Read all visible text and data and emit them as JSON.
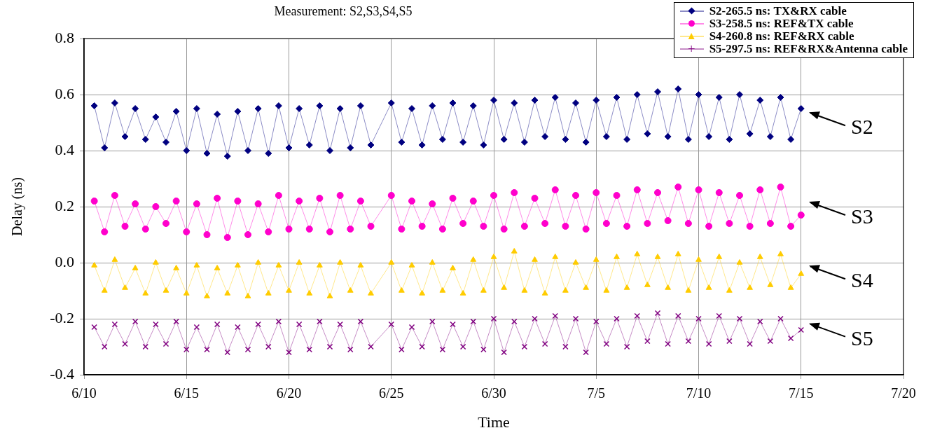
{
  "chart_data": {
    "type": "line",
    "title": "Measurement: S2,S3,S4,S5",
    "xlabel": "Time",
    "ylabel": "Delay (ns)",
    "x": [
      "--06-10T12:00",
      "--06-11T00:00",
      "--06-11T12:00",
      "--06-12T00:00",
      "--06-12T12:00",
      "--06-13T00:00",
      "--06-13T12:00",
      "--06-14T00:00",
      "--06-14T12:00",
      "--06-15T00:00",
      "--06-15T12:00",
      "--06-16T00:00",
      "--06-16T12:00",
      "--06-17T00:00",
      "--06-17T12:00",
      "--06-18T00:00",
      "--06-18T12:00",
      "--06-19T00:00",
      "--06-19T12:00",
      "--06-20T00:00",
      "--06-20T12:00",
      "--06-21T00:00",
      "--06-21T12:00",
      "--06-22T00:00",
      "--06-22T12:00",
      "--06-23T00:00",
      "--06-23T12:00",
      "--06-24T00:00",
      "--06-25T00:00",
      "--06-25T12:00",
      "--06-26T00:00",
      "--06-26T12:00",
      "--06-27T00:00",
      "--06-27T12:00",
      "--06-28T00:00",
      "--06-28T12:00",
      "--06-29T00:00",
      "--06-29T12:00",
      "--06-30T00:00",
      "--06-30T12:00",
      "--07-01T00:00",
      "--07-01T12:00",
      "--07-02T00:00",
      "--07-02T12:00",
      "--07-03T00:00",
      "--07-03T12:00",
      "--07-04T00:00",
      "--07-04T12:00",
      "--07-05T00:00",
      "--07-05T12:00",
      "--07-06T00:00",
      "--07-06T12:00",
      "--07-07T00:00",
      "--07-07T12:00",
      "--07-08T00:00",
      "--07-08T12:00",
      "--07-09T00:00",
      "--07-09T12:00",
      "--07-10T00:00",
      "--07-10T12:00",
      "--07-11T00:00",
      "--07-11T12:00",
      "--07-12T00:00",
      "--07-12T12:00",
      "--07-13T00:00",
      "--07-13T12:00",
      "--07-14T00:00",
      "--07-14T12:00",
      "--07-15T00:00"
    ],
    "series": [
      {
        "name": "S2-265.5 ns: TX&RX cable",
        "color": "#000080",
        "marker": "diamond",
        "values": [
          0.56,
          0.41,
          0.57,
          0.45,
          0.55,
          0.44,
          0.52,
          0.43,
          0.54,
          0.4,
          0.55,
          0.39,
          0.53,
          0.38,
          0.54,
          0.4,
          0.55,
          0.39,
          0.56,
          0.41,
          0.55,
          0.42,
          0.56,
          0.4,
          0.55,
          0.41,
          0.56,
          0.42,
          0.57,
          0.43,
          0.55,
          0.42,
          0.56,
          0.44,
          0.57,
          0.43,
          0.56,
          0.42,
          0.58,
          0.44,
          0.57,
          0.43,
          0.58,
          0.45,
          0.59,
          0.44,
          0.57,
          0.43,
          0.58,
          0.45,
          0.59,
          0.44,
          0.6,
          0.46,
          0.61,
          0.45,
          0.62,
          0.44,
          0.6,
          0.45,
          0.59,
          0.44,
          0.6,
          0.46,
          0.58,
          0.45,
          0.59,
          0.44,
          0.55
        ]
      },
      {
        "name": "S3-258.5 ns: REF&TX cable",
        "color": "#ff00cc",
        "marker": "circle",
        "values": [
          0.22,
          0.11,
          0.24,
          0.13,
          0.21,
          0.12,
          0.2,
          0.14,
          0.22,
          0.11,
          0.21,
          0.1,
          0.23,
          0.09,
          0.22,
          0.1,
          0.21,
          0.11,
          0.24,
          0.12,
          0.22,
          0.12,
          0.23,
          0.11,
          0.24,
          0.12,
          0.22,
          0.13,
          0.24,
          0.12,
          0.22,
          0.13,
          0.21,
          0.12,
          0.23,
          0.14,
          0.22,
          0.13,
          0.24,
          0.12,
          0.25,
          0.13,
          0.23,
          0.14,
          0.26,
          0.13,
          0.24,
          0.12,
          0.25,
          0.14,
          0.24,
          0.13,
          0.26,
          0.14,
          0.25,
          0.15,
          0.27,
          0.14,
          0.26,
          0.13,
          0.25,
          0.14,
          0.24,
          0.13,
          0.26,
          0.14,
          0.27,
          0.13,
          0.17
        ]
      },
      {
        "name": "S4-260.8 ns: REF&RX cable",
        "color": "#ffcc00",
        "marker": "triangle",
        "values": [
          -0.01,
          -0.1,
          0.01,
          -0.09,
          -0.02,
          -0.11,
          0.0,
          -0.1,
          -0.02,
          -0.11,
          -0.01,
          -0.12,
          -0.02,
          -0.11,
          -0.01,
          -0.12,
          0.0,
          -0.11,
          -0.01,
          -0.1,
          0.0,
          -0.11,
          -0.01,
          -0.12,
          0.0,
          -0.1,
          -0.01,
          -0.11,
          0.0,
          -0.1,
          -0.01,
          -0.11,
          0.0,
          -0.1,
          -0.02,
          -0.11,
          0.01,
          -0.1,
          0.02,
          -0.09,
          0.04,
          -0.1,
          0.01,
          -0.11,
          0.02,
          -0.1,
          0.0,
          -0.09,
          0.01,
          -0.1,
          0.02,
          -0.09,
          0.03,
          -0.08,
          0.02,
          -0.09,
          0.03,
          -0.1,
          0.01,
          -0.09,
          0.02,
          -0.1,
          0.0,
          -0.09,
          0.02,
          -0.08,
          0.03,
          -0.09,
          -0.04
        ]
      },
      {
        "name": "S5-297.5 ns: REF&RX&Antenna cable",
        "color": "#800080",
        "marker": "cross",
        "values": [
          -0.23,
          -0.3,
          -0.22,
          -0.29,
          -0.21,
          -0.3,
          -0.22,
          -0.29,
          -0.21,
          -0.31,
          -0.23,
          -0.31,
          -0.22,
          -0.32,
          -0.23,
          -0.31,
          -0.22,
          -0.3,
          -0.21,
          -0.32,
          -0.22,
          -0.31,
          -0.21,
          -0.3,
          -0.22,
          -0.31,
          -0.21,
          -0.3,
          -0.22,
          -0.31,
          -0.23,
          -0.3,
          -0.21,
          -0.31,
          -0.22,
          -0.3,
          -0.21,
          -0.31,
          -0.2,
          -0.32,
          -0.21,
          -0.3,
          -0.2,
          -0.29,
          -0.19,
          -0.3,
          -0.2,
          -0.32,
          -0.21,
          -0.29,
          -0.2,
          -0.3,
          -0.19,
          -0.28,
          -0.18,
          -0.29,
          -0.19,
          -0.28,
          -0.2,
          -0.29,
          -0.19,
          -0.28,
          -0.2,
          -0.29,
          -0.21,
          -0.28,
          -0.2,
          -0.27,
          -0.24
        ]
      }
    ],
    "xlim": [
      "--06-10",
      "--07-20"
    ],
    "xticks": [
      {
        "value": "--06-10",
        "label": "6/10"
      },
      {
        "value": "--06-15",
        "label": "6/15"
      },
      {
        "value": "--06-20",
        "label": "6/20"
      },
      {
        "value": "--06-25",
        "label": "6/25"
      },
      {
        "value": "--06-30",
        "label": "6/30"
      },
      {
        "value": "--07-05",
        "label": "7/5"
      },
      {
        "value": "--07-10",
        "label": "7/10"
      },
      {
        "value": "--07-15",
        "label": "7/15"
      },
      {
        "value": "--07-20",
        "label": "7/20"
      }
    ],
    "ylim": [
      -0.4,
      0.8
    ],
    "yticks": [
      {
        "value": -0.4,
        "label": "-0.4"
      },
      {
        "value": -0.2,
        "label": "-0.2"
      },
      {
        "value": 0,
        "label": "0.0"
      },
      {
        "value": 0.2,
        "label": "0.2"
      },
      {
        "value": 0.4,
        "label": "0.4"
      },
      {
        "value": 0.6,
        "label": "0.6"
      },
      {
        "value": 0.8,
        "label": "0.8"
      }
    ],
    "grid": true,
    "legend": "top right",
    "annotations": [
      "S2",
      "S3",
      "S4",
      "S5"
    ]
  }
}
